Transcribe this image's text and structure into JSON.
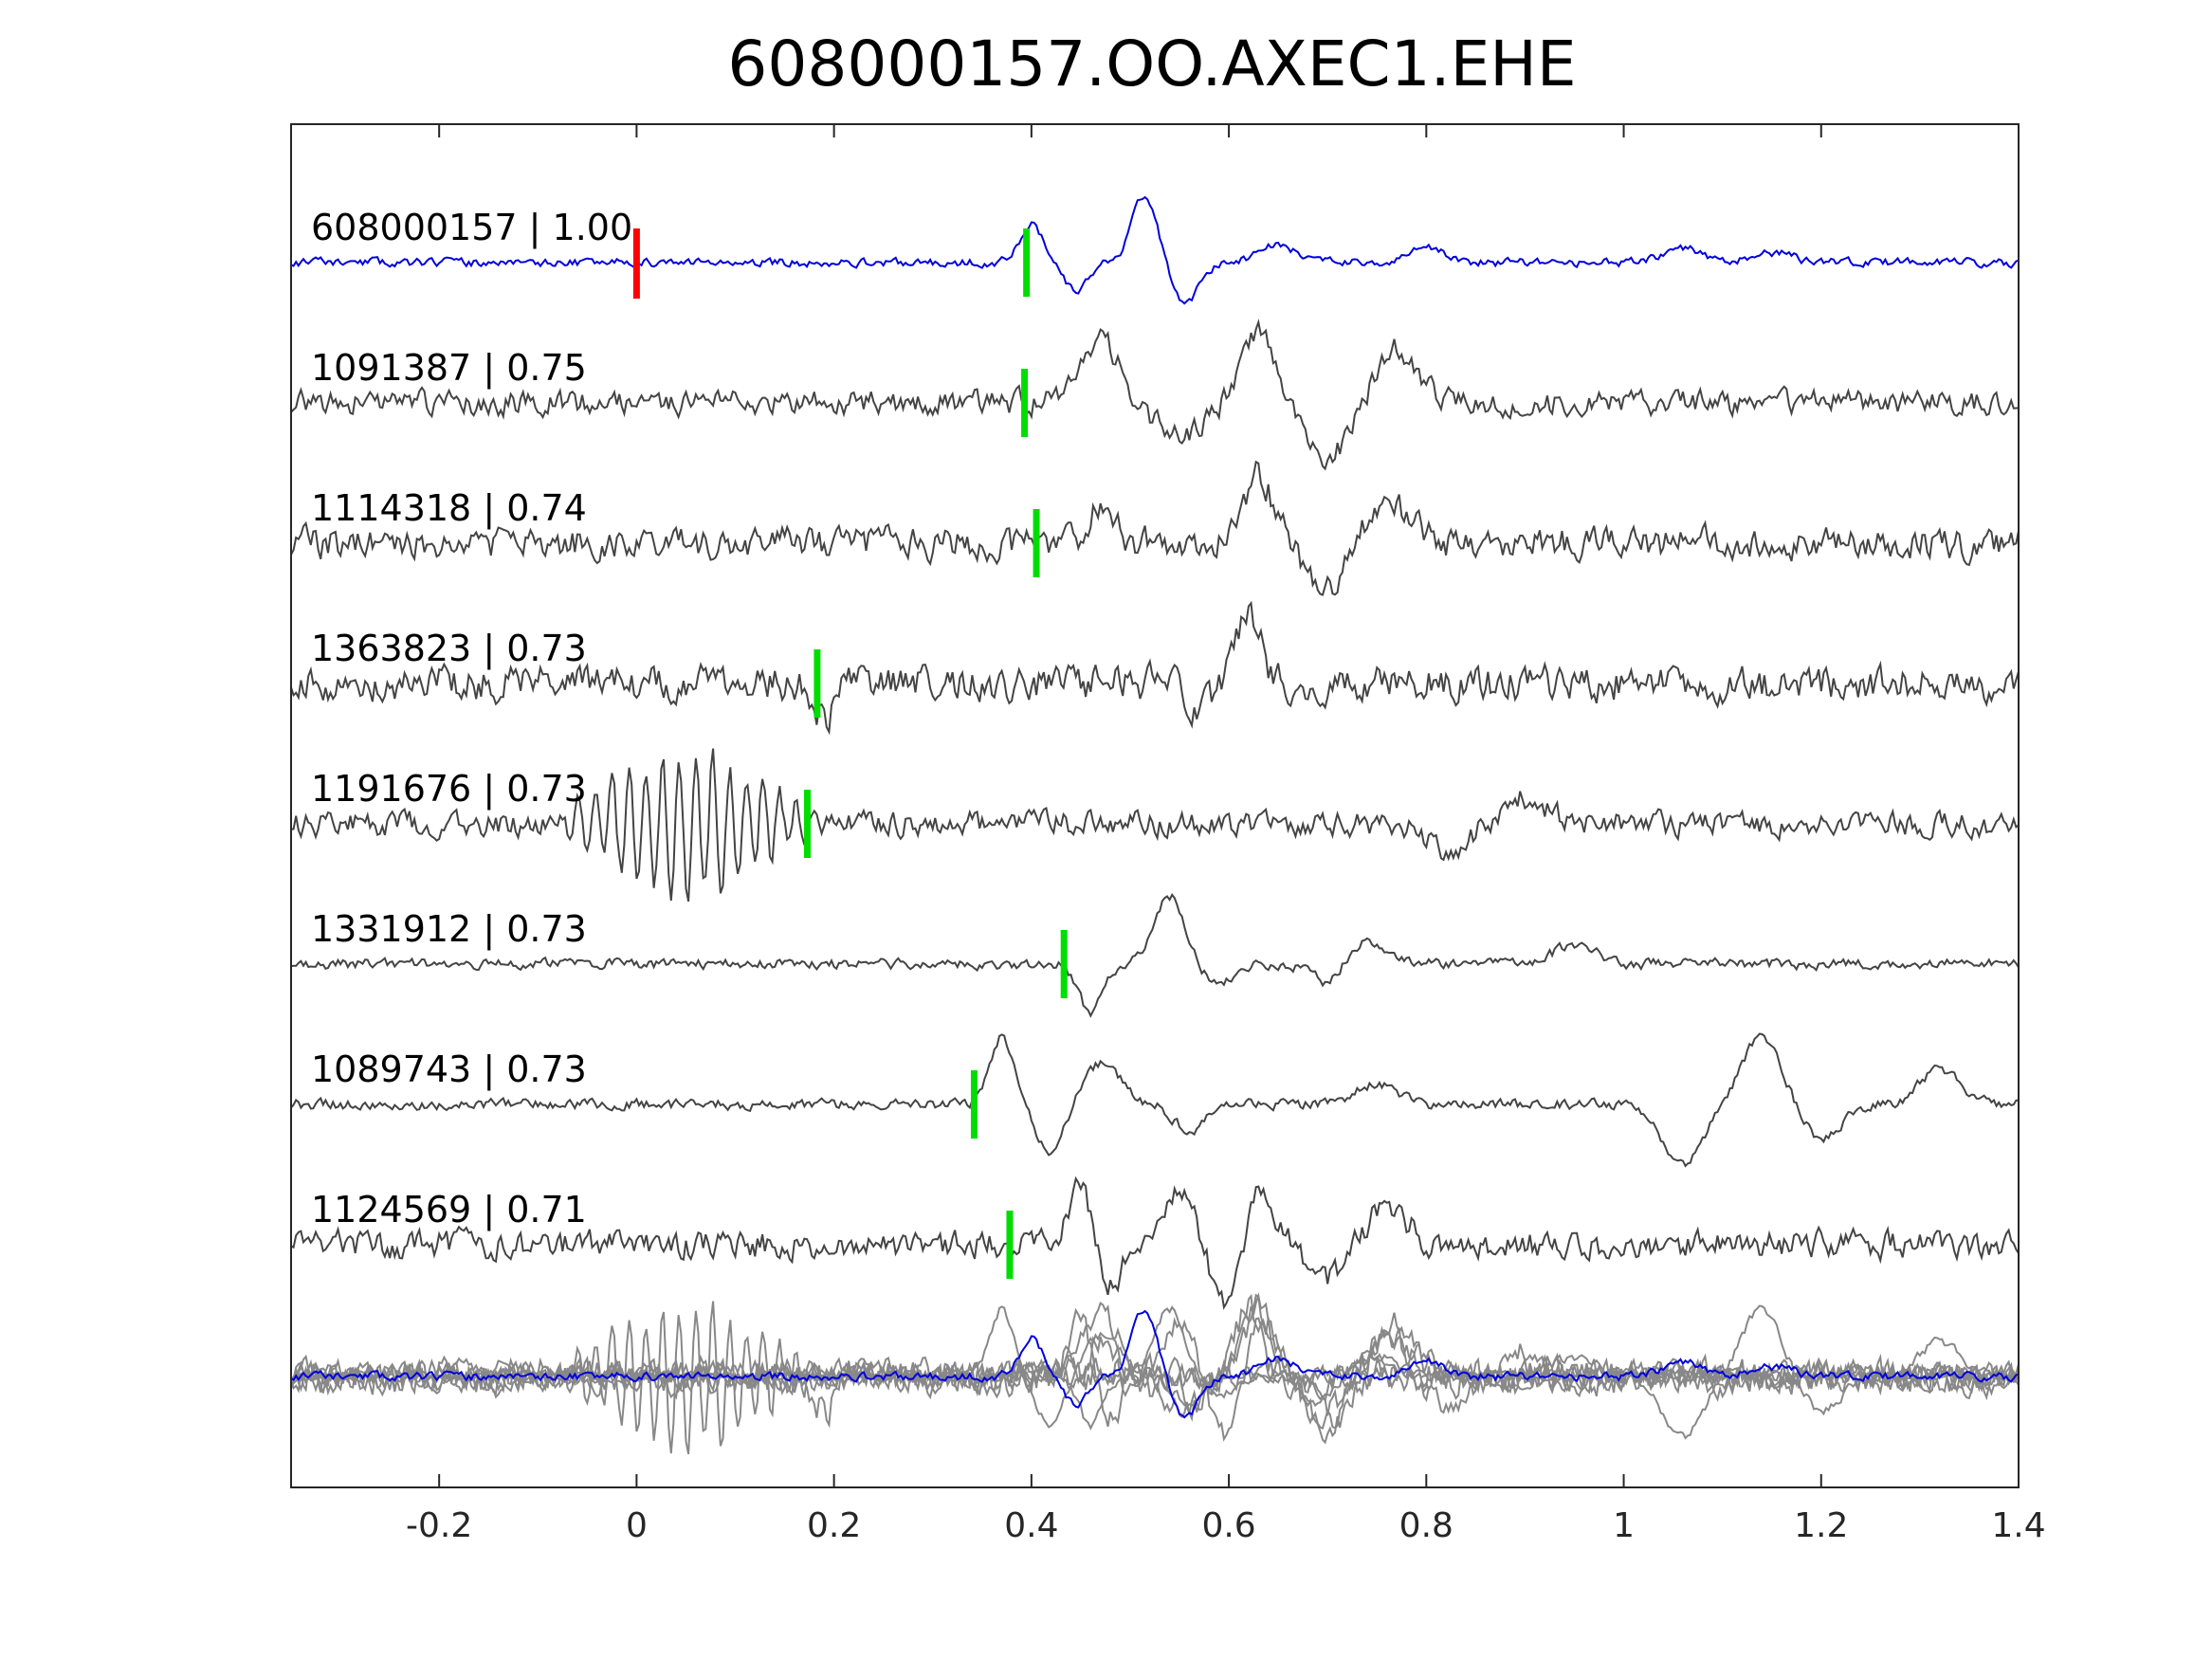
{
  "chart_data": {
    "type": "line",
    "title": "608000157.OO.AXEC1.EHE",
    "xlabel": "",
    "ylabel": "",
    "xlim": [
      -0.35,
      1.4
    ],
    "x_ticks": [
      -0.2,
      0,
      0.2,
      0.4,
      0.6,
      0.8,
      1,
      1.2,
      1.4
    ],
    "x_tick_labels": [
      "-0.2",
      "0",
      "0.2",
      "0.4",
      "0.6",
      "0.8",
      "1",
      "1.2",
      "1.4"
    ],
    "grid": false,
    "legend": "none",
    "colors": {
      "template": "#0000dd",
      "match": "#444444",
      "stack": "#888888",
      "origin_pick": "#ff0000",
      "phase_pick": "#00dd00"
    },
    "origin_pick_x": 0.0,
    "series": [
      {
        "label": "608000157 | 1.00",
        "pick": 0.395,
        "seed": 11,
        "noise": 0.12,
        "wavelets": [
          [
            0.4,
            0.55,
            0.012
          ],
          [
            0.445,
            -0.4,
            0.012
          ],
          [
            0.515,
            1.0,
            0.013
          ],
          [
            0.555,
            -0.6,
            0.014
          ],
          [
            0.65,
            0.25,
            0.02
          ],
          [
            0.8,
            0.2,
            0.02
          ],
          [
            1.06,
            0.2,
            0.02
          ],
          [
            1.15,
            0.15,
            0.02
          ]
        ],
        "color": "template"
      },
      {
        "label": "1091387 | 0.75",
        "pick": 0.393,
        "seed": 23,
        "noise": 0.35,
        "wavelets": [
          [
            0.47,
            0.9,
            0.02
          ],
          [
            0.55,
            -0.5,
            0.025
          ],
          [
            0.63,
            1.0,
            0.018
          ],
          [
            0.7,
            -0.8,
            0.02
          ],
          [
            0.77,
            0.8,
            0.02
          ]
        ],
        "color": "match"
      },
      {
        "label": "1114318 | 0.74",
        "pick": 0.405,
        "seed": 37,
        "noise": 0.45,
        "wavelets": [
          [
            0.47,
            0.6,
            0.012
          ],
          [
            0.63,
            1.0,
            0.015
          ],
          [
            0.7,
            -0.6,
            0.02
          ],
          [
            0.76,
            0.7,
            0.02
          ]
        ],
        "color": "match"
      },
      {
        "label": "1363823 | 0.73",
        "pick": 0.183,
        "seed": 41,
        "noise": 0.5,
        "wavelets": [
          [
            0.19,
            -0.5,
            0.01
          ],
          [
            0.62,
            1.0,
            0.012
          ],
          [
            0.57,
            -0.4,
            0.012
          ]
        ],
        "color": "match"
      },
      {
        "label": "1191676 | 0.73",
        "pick": 0.173,
        "seed": 53,
        "noise": 0.35,
        "burst": [
          -0.08,
          0.18,
          1.0,
          0.017
        ],
        "wavelets": [
          [
            0.82,
            -0.4,
            0.02
          ],
          [
            0.9,
            0.4,
            0.02
          ]
        ],
        "color": "match"
      },
      {
        "label": "1331912 | 0.73",
        "pick": 0.433,
        "seed": 67,
        "noise": 0.15,
        "wavelets": [
          [
            0.46,
            -0.7,
            0.012
          ],
          [
            0.54,
            1.0,
            0.015
          ],
          [
            0.59,
            -0.3,
            0.015
          ],
          [
            0.7,
            -0.3,
            0.015
          ],
          [
            0.74,
            0.35,
            0.02
          ],
          [
            0.95,
            0.3,
            0.02
          ]
        ],
        "color": "match"
      },
      {
        "label": "1089743 | 0.73",
        "pick": 0.342,
        "seed": 79,
        "noise": 0.15,
        "wavelets": [
          [
            0.37,
            1.0,
            0.012
          ],
          [
            0.42,
            -0.7,
            0.015
          ],
          [
            0.47,
            0.6,
            0.02
          ],
          [
            0.56,
            -0.4,
            0.015
          ],
          [
            0.75,
            0.3,
            0.02
          ],
          [
            1.06,
            -0.9,
            0.02
          ],
          [
            1.14,
            1.0,
            0.02
          ],
          [
            1.2,
            -0.5,
            0.02
          ],
          [
            1.32,
            0.5,
            0.02
          ]
        ],
        "color": "match"
      },
      {
        "label": "1124569 | 0.71",
        "pick": 0.378,
        "seed": 97,
        "noise": 0.4,
        "wavelets": [
          [
            0.45,
            0.8,
            0.012
          ],
          [
            0.48,
            -0.6,
            0.012
          ],
          [
            0.55,
            0.7,
            0.015
          ],
          [
            0.6,
            -1.0,
            0.015
          ],
          [
            0.63,
            1.0,
            0.015
          ],
          [
            0.7,
            -0.5,
            0.02
          ],
          [
            0.76,
            0.6,
            0.02
          ]
        ],
        "color": "match"
      }
    ],
    "stack": {
      "description_shown": false
    }
  }
}
